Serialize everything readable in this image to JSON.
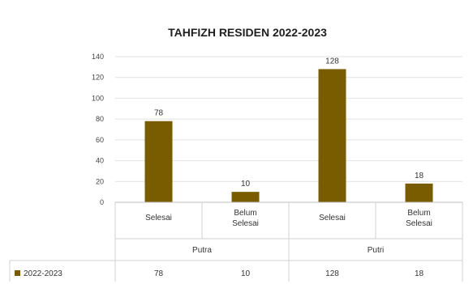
{
  "chart_data": {
    "type": "bar",
    "title": "TAHFIZH RESIDEN 2022-2023",
    "groups": [
      {
        "label": "Putra",
        "categories": [
          "Selesai",
          "Belum Selesai"
        ]
      },
      {
        "label": "Putri",
        "categories": [
          "Selesai",
          "Belum Selesai"
        ]
      }
    ],
    "categories": [
      "Selesai",
      "Belum Selesai",
      "Selesai",
      "Belum Selesai"
    ],
    "series": [
      {
        "name": "2022-2023",
        "values": [
          78,
          10,
          128,
          18
        ],
        "color": "#7a5c00"
      }
    ],
    "ylim": [
      0,
      140
    ],
    "yticks": [
      0,
      20,
      40,
      60,
      80,
      100,
      120,
      140
    ],
    "grid": true,
    "data_table": true,
    "xlabel": "",
    "ylabel": ""
  }
}
